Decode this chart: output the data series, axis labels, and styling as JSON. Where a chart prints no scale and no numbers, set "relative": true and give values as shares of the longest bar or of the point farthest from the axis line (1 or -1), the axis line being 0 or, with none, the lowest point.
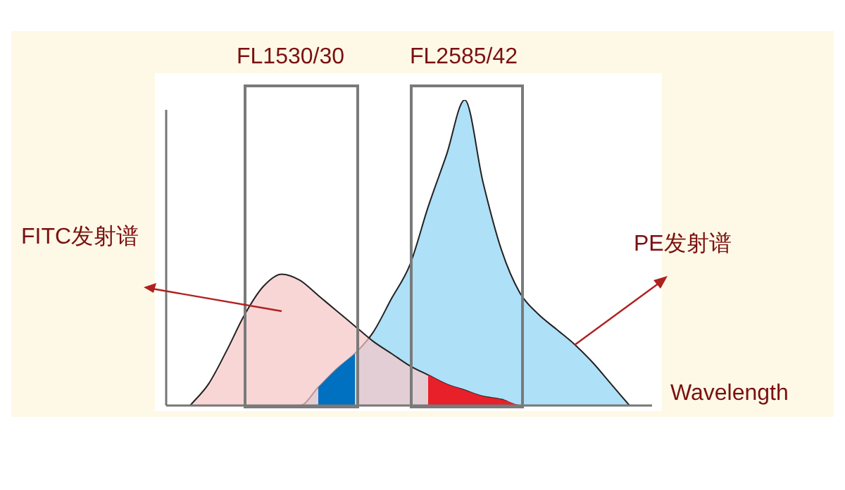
{
  "chart_data": {
    "type": "area",
    "relative": true,
    "xlabel": "Wavelength",
    "annotations": [
      "FL1530/30",
      "FL2585/42",
      "FITC发射谱",
      "PE发射谱"
    ],
    "categories": [
      null,
      null,
      null,
      null,
      null,
      null,
      null,
      null,
      null,
      null,
      null,
      null,
      null,
      null,
      null,
      null,
      null,
      null,
      null,
      null,
      null,
      null,
      null,
      null,
      null
    ],
    "series": [
      {
        "color": "#aee0f7",
        "values": [
          0,
          0,
          0,
          0,
          0,
          0,
          0,
          0.06,
          0.12,
          0.17,
          0.24,
          0.35,
          0.46,
          0.65,
          0.82,
          1,
          0.73,
          0.51,
          0.37,
          0.3,
          0.25,
          0.2,
          0.14,
          0.07,
          0
        ]
      },
      {
        "color": "#f7c6c6",
        "values": [
          0,
          0.07,
          0.18,
          0.3,
          0.39,
          0.43,
          0.41,
          0.36,
          0.31,
          0.26,
          0.21,
          0.17,
          0.13,
          0.1,
          0.07,
          0.05,
          0.03,
          0.02,
          0,
          0,
          0,
          0,
          0,
          0,
          0
        ]
      },
      {
        "color": "#0070c0",
        "values": [
          null,
          null,
          null,
          null,
          null,
          null,
          null,
          0.06,
          0.12,
          0.17,
          null,
          null,
          null,
          null,
          null,
          null,
          null,
          null,
          null,
          null,
          null,
          null,
          null,
          null,
          null
        ]
      },
      {
        "color": "#e8202a",
        "values": [
          null,
          null,
          null,
          null,
          null,
          null,
          null,
          null,
          null,
          null,
          null,
          null,
          null,
          0.1,
          0.07,
          0.05,
          0.03,
          0.02,
          0,
          null,
          null,
          null,
          null,
          null,
          null
        ]
      }
    ]
  }
}
